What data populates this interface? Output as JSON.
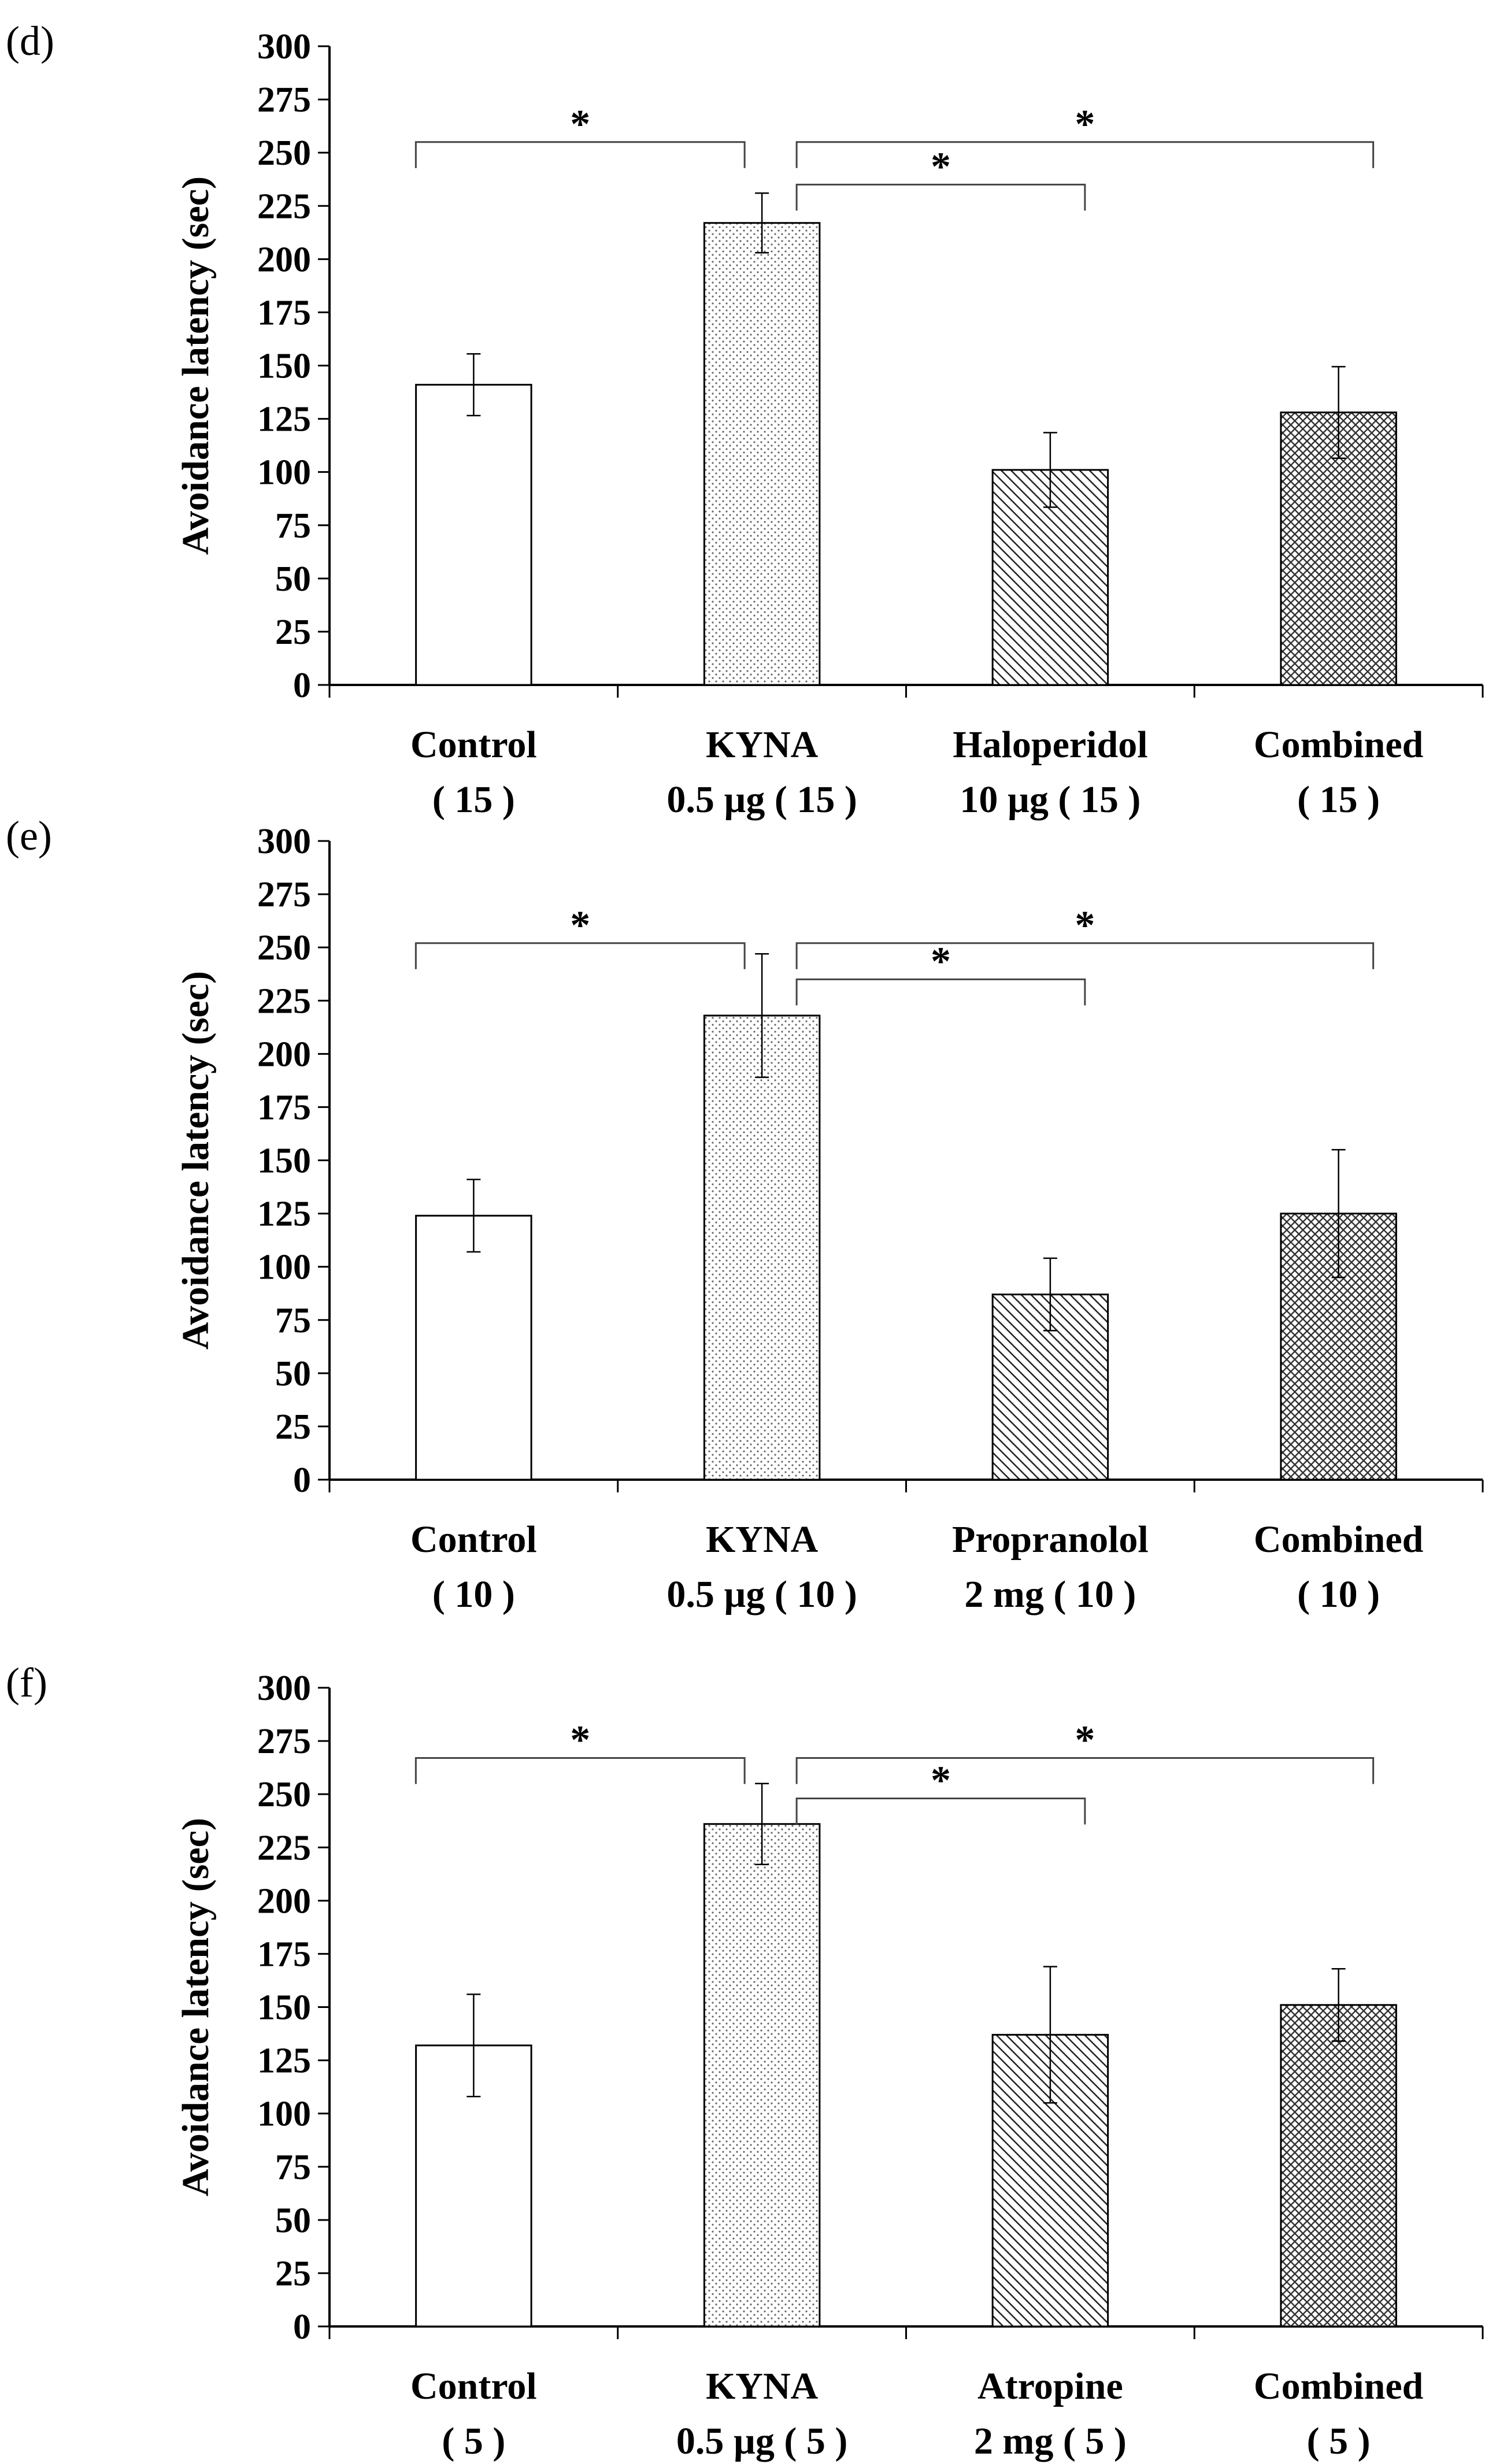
{
  "chart_data": [
    {
      "type": "bar",
      "panel_label": "(d)",
      "ylabel": "Avoidance latency (sec)",
      "ylim": [
        0,
        300
      ],
      "yticks": [
        "0",
        "25",
        "50",
        "75",
        "100",
        "125",
        "150",
        "175",
        "200",
        "225",
        "250",
        "275",
        "300"
      ],
      "categories": [
        {
          "name": "Control",
          "n": "( 15 )"
        },
        {
          "name": "KYNA",
          "n": "0.5 µg ( 15 )"
        },
        {
          "name": "Haloperidol",
          "n": "10 µg ( 15 )"
        },
        {
          "name": "Combined",
          "n": "( 15 )"
        }
      ],
      "values": [
        141,
        217,
        101,
        128
      ],
      "errors": [
        14.5,
        14,
        17.5,
        21.5
      ],
      "fills": [
        "white",
        "dots",
        "diagonal",
        "crosshatch"
      ],
      "significance": [
        {
          "from": 0,
          "to": 1,
          "label": "*",
          "y": 255
        },
        {
          "from": 1,
          "to": 3,
          "label": "*",
          "y": 255
        },
        {
          "from": 1,
          "to": 2,
          "label": "*",
          "y": 235
        }
      ]
    },
    {
      "type": "bar",
      "panel_label": "(e)",
      "ylabel": "Avoidance latency (sec)",
      "ylim": [
        0,
        300
      ],
      "yticks": [
        "0",
        "25",
        "50",
        "75",
        "100",
        "125",
        "150",
        "175",
        "200",
        "225",
        "250",
        "275",
        "300"
      ],
      "categories": [
        {
          "name": "Control",
          "n": "( 10 )"
        },
        {
          "name": "KYNA",
          "n": "0.5 µg ( 10 )"
        },
        {
          "name": "Propranolol",
          "n": "2 mg ( 10 )"
        },
        {
          "name": "Combined",
          "n": "( 10 )"
        }
      ],
      "values": [
        124,
        218,
        87,
        125
      ],
      "errors": [
        17,
        29,
        17,
        30
      ],
      "fills": [
        "white",
        "dots",
        "diagonal",
        "crosshatch"
      ],
      "significance": [
        {
          "from": 0,
          "to": 1,
          "label": "*",
          "y": 252
        },
        {
          "from": 1,
          "to": 3,
          "label": "*",
          "y": 252
        },
        {
          "from": 1,
          "to": 2,
          "label": "*",
          "y": 235
        }
      ]
    },
    {
      "type": "bar",
      "panel_label": "(f)",
      "ylabel": "Avoidance latency (sec)",
      "ylim": [
        0,
        300
      ],
      "yticks": [
        "0",
        "25",
        "50",
        "75",
        "100",
        "125",
        "150",
        "175",
        "200",
        "225",
        "250",
        "275",
        "300"
      ],
      "categories": [
        {
          "name": "Control",
          "n": "( 5 )"
        },
        {
          "name": "KYNA",
          "n": "0.5 µg ( 5 )"
        },
        {
          "name": "Atropine",
          "n": "2 mg ( 5 )"
        },
        {
          "name": "Combined",
          "n": "( 5 )"
        }
      ],
      "values": [
        132,
        236,
        137,
        151
      ],
      "errors": [
        24,
        19,
        32,
        17
      ],
      "fills": [
        "white",
        "dots",
        "diagonal",
        "crosshatch"
      ],
      "significance": [
        {
          "from": 0,
          "to": 1,
          "label": "*",
          "y": 267
        },
        {
          "from": 1,
          "to": 3,
          "label": "*",
          "y": 267
        },
        {
          "from": 1,
          "to": 2,
          "label": "*",
          "y": 248
        }
      ]
    }
  ]
}
